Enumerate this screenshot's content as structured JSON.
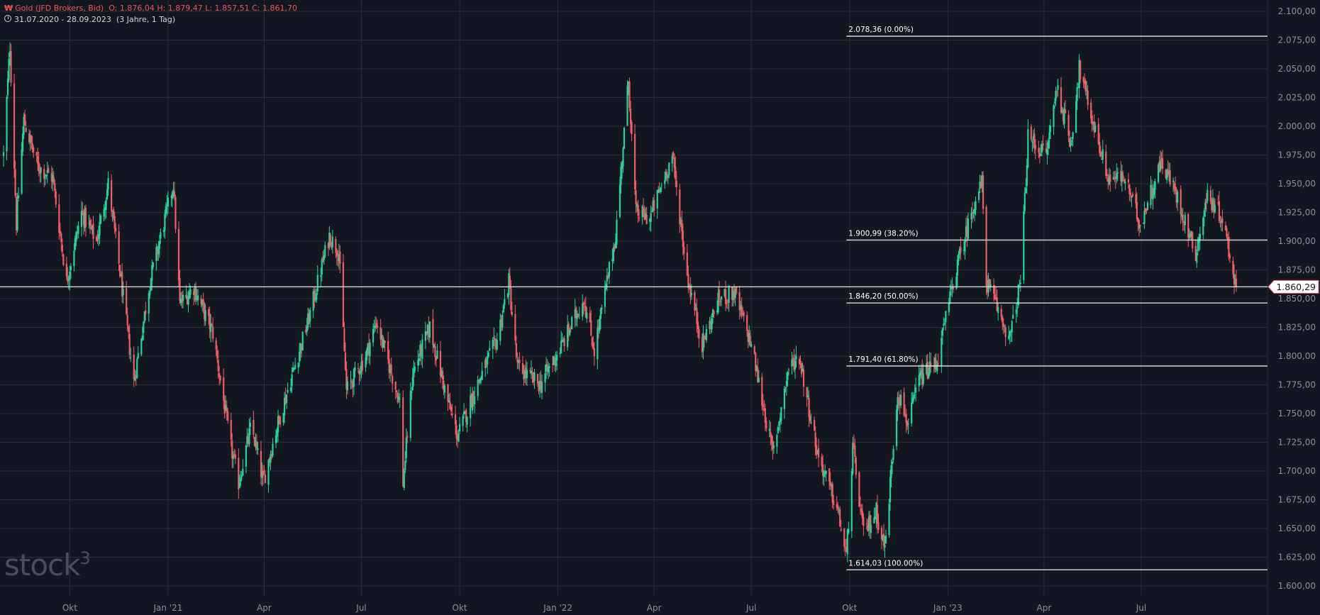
{
  "header": {
    "symbol_icon": "₩",
    "title": "Gold (JFD Brokers, Bid)",
    "ohlc": "O: 1.876,04  H: 1.879,47  L: 1.857,51  C: 1.861,70",
    "range": "31.07.2020 - 28.09.2023",
    "range_detail": "(3 Jahre, 1 Tag)"
  },
  "logo": {
    "text": "stock",
    "superscript": "3"
  },
  "colors": {
    "background": "#131722",
    "up": "#26d39b",
    "down": "#f05d66",
    "grid": "#2a2e39",
    "axis_text": "#8c8f99",
    "price_line": "#ffffff"
  },
  "chart_data": {
    "type": "candlestick",
    "x_range": [
      "2020-07-31",
      "2023-09-28"
    ],
    "ylim": [
      1600,
      2100
    ],
    "y_ticks": [
      1600,
      1625,
      1650,
      1675,
      1700,
      1725,
      1750,
      1775,
      1800,
      1825,
      1850,
      1875,
      1900,
      1925,
      1950,
      1975,
      2000,
      2025,
      2050,
      2075,
      2100
    ],
    "y_tick_labels": [
      "1.600,00",
      "1.625,00",
      "1.650,00",
      "1.675,00",
      "1.700,00",
      "1.725,00",
      "1.750,00",
      "1.775,00",
      "1.800,00",
      "1.825,00",
      "1.850,00",
      "1.875,00",
      "1.900,00",
      "1.925,00",
      "1.950,00",
      "1.975,00",
      "2.000,00",
      "2.025,00",
      "2.050,00",
      "2.075,00",
      "2.100,00"
    ],
    "x_ticks": [
      {
        "date": "2020-10-01",
        "label": "Okt"
      },
      {
        "date": "2021-01-01",
        "label": "Jan '21"
      },
      {
        "date": "2021-04-01",
        "label": "Apr"
      },
      {
        "date": "2021-07-01",
        "label": "Jul"
      },
      {
        "date": "2021-10-01",
        "label": "Okt"
      },
      {
        "date": "2022-01-01",
        "label": "Jan '22"
      },
      {
        "date": "2022-04-01",
        "label": "Apr"
      },
      {
        "date": "2022-07-01",
        "label": "Jul"
      },
      {
        "date": "2022-10-01",
        "label": "Okt"
      },
      {
        "date": "2023-01-01",
        "label": "Jan '23"
      },
      {
        "date": "2023-04-01",
        "label": "Apr"
      },
      {
        "date": "2023-07-01",
        "label": "Jul"
      }
    ],
    "closes": [
      {
        "date": "2020-07-31",
        "close": 1975
      },
      {
        "date": "2020-08-06",
        "close": 2070
      },
      {
        "date": "2020-08-12",
        "close": 1915
      },
      {
        "date": "2020-08-19",
        "close": 2005
      },
      {
        "date": "2020-09-01",
        "close": 1965
      },
      {
        "date": "2020-09-15",
        "close": 1955
      },
      {
        "date": "2020-09-28",
        "close": 1865
      },
      {
        "date": "2020-10-12",
        "close": 1925
      },
      {
        "date": "2020-10-26",
        "close": 1900
      },
      {
        "date": "2020-11-06",
        "close": 1950
      },
      {
        "date": "2020-11-16",
        "close": 1880
      },
      {
        "date": "2020-11-30",
        "close": 1778
      },
      {
        "date": "2020-12-15",
        "close": 1865
      },
      {
        "date": "2021-01-06",
        "close": 1950
      },
      {
        "date": "2021-01-12",
        "close": 1845
      },
      {
        "date": "2021-01-25",
        "close": 1860
      },
      {
        "date": "2021-02-12",
        "close": 1820
      },
      {
        "date": "2021-03-01",
        "close": 1720
      },
      {
        "date": "2021-03-08",
        "close": 1690
      },
      {
        "date": "2021-03-20",
        "close": 1740
      },
      {
        "date": "2021-03-31",
        "close": 1690
      },
      {
        "date": "2021-04-12",
        "close": 1735
      },
      {
        "date": "2021-04-26",
        "close": 1780
      },
      {
        "date": "2021-05-12",
        "close": 1830
      },
      {
        "date": "2021-06-01",
        "close": 1905
      },
      {
        "date": "2021-06-10",
        "close": 1890
      },
      {
        "date": "2021-06-17",
        "close": 1770
      },
      {
        "date": "2021-07-05",
        "close": 1800
      },
      {
        "date": "2021-07-15",
        "close": 1830
      },
      {
        "date": "2021-08-06",
        "close": 1760
      },
      {
        "date": "2021-08-09",
        "close": 1690
      },
      {
        "date": "2021-08-18",
        "close": 1785
      },
      {
        "date": "2021-09-03",
        "close": 1825
      },
      {
        "date": "2021-09-20",
        "close": 1760
      },
      {
        "date": "2021-09-29",
        "close": 1730
      },
      {
        "date": "2021-10-15",
        "close": 1770
      },
      {
        "date": "2021-11-05",
        "close": 1815
      },
      {
        "date": "2021-11-16",
        "close": 1865
      },
      {
        "date": "2021-11-24",
        "close": 1790
      },
      {
        "date": "2021-12-15",
        "close": 1775
      },
      {
        "date": "2022-01-05",
        "close": 1810
      },
      {
        "date": "2022-01-25",
        "close": 1850
      },
      {
        "date": "2022-02-04",
        "close": 1805
      },
      {
        "date": "2022-02-24",
        "close": 1905
      },
      {
        "date": "2022-03-08",
        "close": 2040
      },
      {
        "date": "2022-03-15",
        "close": 1925
      },
      {
        "date": "2022-03-28",
        "close": 1920
      },
      {
        "date": "2022-04-18",
        "close": 1975
      },
      {
        "date": "2022-05-02",
        "close": 1870
      },
      {
        "date": "2022-05-16",
        "close": 1810
      },
      {
        "date": "2022-06-01",
        "close": 1850
      },
      {
        "date": "2022-06-15",
        "close": 1855
      },
      {
        "date": "2022-07-01",
        "close": 1810
      },
      {
        "date": "2022-07-21",
        "close": 1715
      },
      {
        "date": "2022-08-05",
        "close": 1790
      },
      {
        "date": "2022-08-15",
        "close": 1800
      },
      {
        "date": "2022-09-01",
        "close": 1715
      },
      {
        "date": "2022-09-20",
        "close": 1665
      },
      {
        "date": "2022-09-28",
        "close": 1625
      },
      {
        "date": "2022-10-04",
        "close": 1720
      },
      {
        "date": "2022-10-14",
        "close": 1645
      },
      {
        "date": "2022-10-26",
        "close": 1665
      },
      {
        "date": "2022-11-03",
        "close": 1632
      },
      {
        "date": "2022-11-15",
        "close": 1770
      },
      {
        "date": "2022-11-25",
        "close": 1740
      },
      {
        "date": "2022-12-05",
        "close": 1780
      },
      {
        "date": "2022-12-22",
        "close": 1795
      },
      {
        "date": "2023-01-06",
        "close": 1865
      },
      {
        "date": "2023-01-26",
        "close": 1935
      },
      {
        "date": "2023-02-02",
        "close": 1950
      },
      {
        "date": "2023-02-06",
        "close": 1865
      },
      {
        "date": "2023-02-28",
        "close": 1815
      },
      {
        "date": "2023-03-10",
        "close": 1865
      },
      {
        "date": "2023-03-17",
        "close": 1990
      },
      {
        "date": "2023-04-03",
        "close": 1975
      },
      {
        "date": "2023-04-13",
        "close": 2035
      },
      {
        "date": "2023-04-26",
        "close": 1985
      },
      {
        "date": "2023-05-04",
        "close": 2050
      },
      {
        "date": "2023-05-15",
        "close": 2010
      },
      {
        "date": "2023-05-31",
        "close": 1955
      },
      {
        "date": "2023-06-15",
        "close": 1955
      },
      {
        "date": "2023-06-30",
        "close": 1915
      },
      {
        "date": "2023-07-20",
        "close": 1970
      },
      {
        "date": "2023-08-01",
        "close": 1945
      },
      {
        "date": "2023-08-21",
        "close": 1890
      },
      {
        "date": "2023-09-01",
        "close": 1940
      },
      {
        "date": "2023-09-15",
        "close": 1920
      },
      {
        "date": "2023-09-28",
        "close": 1860
      }
    ],
    "last_price": 1860.29,
    "last_price_label": "1.860,29",
    "fib_levels": [
      {
        "price": 2078.36,
        "label": "2.078,36 (0.00%)"
      },
      {
        "price": 1900.99,
        "label": "1.900,99 (38.20%)"
      },
      {
        "price": 1846.2,
        "label": "1.846,20 (50.00%)"
      },
      {
        "price": 1791.4,
        "label": "1.791,40 (61.80%)"
      },
      {
        "price": 1614.03,
        "label": "1.614,03 (100.00%)"
      }
    ],
    "fib_start_date": "2022-09-28",
    "grid": true
  }
}
